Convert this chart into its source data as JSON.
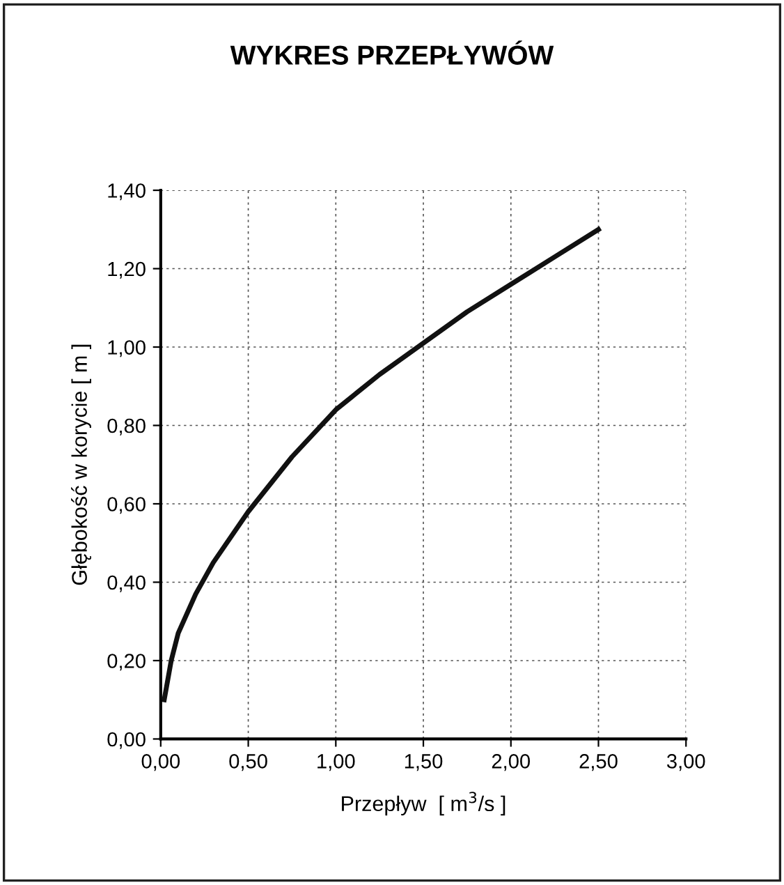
{
  "chart_data": {
    "type": "line",
    "title": "WYKRES PRZEPŁYWÓW",
    "xlabel": "Przepływ  [ m$^{3}$/s ]",
    "ylabel": "Głębokość w korycie [ m ]",
    "series": [
      {
        "color": "#111111",
        "x": [
          0.02,
          0.06,
          0.1,
          0.2,
          0.3,
          0.5,
          0.75,
          1.0,
          1.25,
          1.5,
          1.75,
          2.0,
          2.25,
          2.5
        ],
        "values": [
          0.1,
          0.2,
          0.27,
          0.37,
          0.45,
          0.58,
          0.72,
          0.84,
          0.93,
          1.01,
          1.09,
          1.16,
          1.23,
          1.3
        ]
      }
    ],
    "xlim": [
      0,
      3
    ],
    "ylim": [
      0,
      1.4
    ],
    "xticks": [
      {
        "value": 0,
        "label": "0,00"
      },
      {
        "value": 0.5,
        "label": "0,50"
      },
      {
        "value": 1,
        "label": "1,00"
      },
      {
        "value": 1.5,
        "label": "1,50"
      },
      {
        "value": 2,
        "label": "2,00"
      },
      {
        "value": 2.5,
        "label": "2,50"
      },
      {
        "value": 3,
        "label": "3,00"
      }
    ],
    "yticks": [
      {
        "value": 0,
        "label": "0,00"
      },
      {
        "value": 0.2,
        "label": "0,20"
      },
      {
        "value": 0.4,
        "label": "0,40"
      },
      {
        "value": 0.6,
        "label": "0,60"
      },
      {
        "value": 0.8,
        "label": "0,80"
      },
      {
        "value": 1,
        "label": "1,00"
      },
      {
        "value": 1.2,
        "label": "1,20"
      },
      {
        "value": 1.4,
        "label": "1,40"
      }
    ],
    "grid": true,
    "marker": "none",
    "line_style": "solid",
    "legend": false
  }
}
